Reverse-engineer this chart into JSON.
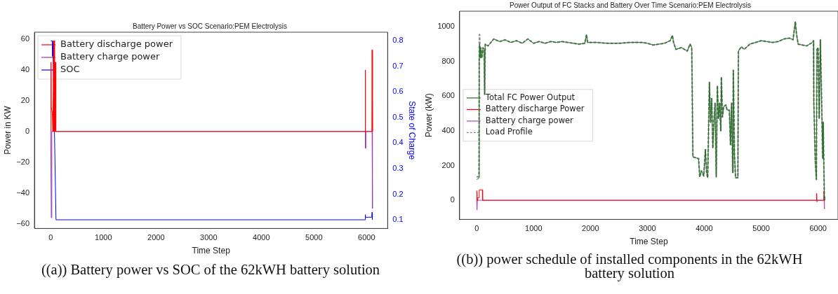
{
  "chart_data": [
    {
      "type": "line",
      "title": "Battery Power vs SOC Scenario:PEM Electrolysis",
      "xlabel": "Time Step",
      "ylabel": "Power in KW",
      "y2label": "State of Charge",
      "legend": "top left",
      "annotations": [
        "((a)) Battery power vs SOC of the 62kWH battery solution"
      ],
      "xlim": [
        -310,
        6400
      ],
      "ylim": [
        -63,
        64.5
      ],
      "y2lim": [
        0.066,
        0.834
      ],
      "xticks": [
        0,
        1000,
        2000,
        3000,
        4000,
        5000,
        6000
      ],
      "yticks": [
        {
          "value": -60,
          "label": "−60"
        },
        {
          "value": -40,
          "label": "−40"
        },
        {
          "value": -20,
          "label": "−20"
        },
        0,
        20,
        40,
        60
      ],
      "y2ticks": [
        0.1,
        0.2,
        0.3,
        0.4,
        0.5,
        0.6,
        0.7,
        0.8
      ],
      "series": [
        {
          "name": "Battery discharge power",
          "color": "#ff0000",
          "x": [
            0,
            5,
            10,
            30,
            40,
            55,
            60,
            65,
            70,
            75,
            80,
            85,
            90,
            95,
            100,
            5970,
            5975,
            5980,
            6100,
            6105,
            6110,
            6115
          ],
          "values": [
            0,
            45,
            16,
            12,
            0,
            59,
            0,
            45,
            0,
            59,
            0,
            45,
            0,
            45,
            0,
            0,
            40,
            0,
            0,
            53,
            13,
            0
          ]
        },
        {
          "name": "Battery charge power",
          "color": "#9b30b0",
          "x": [
            0,
            10,
            20,
            5975,
            5980,
            5985,
            6105,
            6110,
            6115
          ],
          "values": [
            0,
            -56,
            0,
            0,
            -11,
            0,
            0,
            -50,
            0
          ]
        },
        {
          "name": "SOC",
          "color": "#0000ff",
          "axis": "y2",
          "x": [
            0,
            30,
            35,
            40,
            45,
            100,
            5970,
            5975,
            5980,
            6100,
            6105,
            6110
          ],
          "values": [
            0.8,
            0.8,
            0.74,
            0.79,
            0.74,
            0.1,
            0.1,
            0.12,
            0.11,
            0.11,
            0.13,
            0.1
          ]
        }
      ]
    },
    {
      "type": "line",
      "title": "Power Output of FC Stacks and Battery Over Time Scenario:PEM Electrolysis",
      "xlabel": "Time Step",
      "ylabel": "Power (kW)",
      "legend": "center left",
      "annotations": [
        "((b)) power schedule of installed components in the 62kWH battery solution"
      ],
      "xlim": [
        -300,
        6350
      ],
      "ylim": [
        -110,
        1090
      ],
      "xticks": [
        0,
        1000,
        2000,
        3000,
        4000,
        5000,
        6000
      ],
      "yticks": [
        0,
        200,
        400,
        600,
        800,
        1000
      ],
      "series": [
        {
          "name": "Total FC Power Output",
          "color": "#1e6e1e",
          "x": [
            0,
            30,
            40,
            45,
            50,
            60,
            70,
            90,
            110,
            130,
            140,
            150,
            200,
            300,
            400,
            500,
            600,
            700,
            800,
            900,
            1000,
            1100,
            1200,
            1300,
            1400,
            1500,
            1600,
            1700,
            1800,
            1900,
            1930,
            1950,
            2100,
            2300,
            2500,
            2700,
            2900,
            3000,
            3100,
            3300,
            3400,
            3440,
            3460,
            3500,
            3600,
            3700,
            3750,
            3780,
            3800,
            3850,
            3900,
            3920,
            3950,
            3990,
            4020,
            4040,
            4060,
            4090,
            4110,
            4130,
            4150,
            4170,
            4190,
            4210,
            4230,
            4250,
            4270,
            4290,
            4300,
            4320,
            4340,
            4380,
            4400,
            4440,
            4460,
            4480,
            4500,
            4510,
            4530,
            4550,
            4590,
            4600,
            4650,
            4700,
            4800,
            4900,
            5000,
            5100,
            5200,
            5300,
            5400,
            5500,
            5560,
            5600,
            5620,
            5650,
            5800,
            5900,
            5920,
            5925,
            5950,
            5970,
            5980,
            6000,
            6020,
            6040,
            6060,
            6080,
            6090,
            6100,
            6110,
            6115
          ],
          "values": [
            120,
            125,
            130,
            800,
            900,
            820,
            880,
            820,
            880,
            870,
            610,
            900,
            890,
            930,
            915,
            925,
            910,
            920,
            905,
            930,
            905,
            915,
            905,
            915,
            910,
            915,
            910,
            905,
            900,
            905,
            955,
            910,
            910,
            905,
            905,
            910,
            910,
            905,
            895,
            905,
            920,
            950,
            910,
            870,
            880,
            860,
            900,
            880,
            250,
            245,
            240,
            135,
            170,
            140,
            295,
            160,
            130,
            680,
            450,
            590,
            300,
            460,
            560,
            135,
            660,
            470,
            560,
            400,
            710,
            480,
            540,
            550,
            520,
            520,
            320,
            560,
            160,
            750,
            270,
            130,
            130,
            860,
            885,
            870,
            900,
            910,
            920,
            915,
            910,
            915,
            930,
            935,
            925,
            1030,
            960,
            900,
            890,
            910,
            920,
            570,
            230,
            120,
            870,
            880,
            470,
            925,
            620,
            240,
            450,
            230,
            20,
            0
          ]
        },
        {
          "name": "Battery discharge Power",
          "color": "#ff0000",
          "x": [
            0,
            5,
            10,
            20,
            40,
            45,
            100,
            105,
            5970,
            5975,
            5980,
            6100,
            6105,
            6110
          ],
          "values": [
            0,
            55,
            0,
            15,
            15,
            60,
            60,
            0,
            0,
            40,
            0,
            0,
            55,
            0
          ]
        },
        {
          "name": "Battery charge power",
          "color": "#b040c0",
          "x": [
            0,
            5,
            10,
            5975,
            5980,
            5985,
            6105,
            6110,
            6115
          ],
          "values": [
            0,
            -55,
            0,
            0,
            -10,
            0,
            0,
            -50,
            0
          ]
        },
        {
          "name": "Load Profile",
          "color": "#888888",
          "line_style": "dashed",
          "x": [
            0,
            30,
            40,
            45,
            50,
            55,
            60,
            70,
            90,
            110,
            130,
            140,
            150,
            200,
            300,
            400,
            500,
            600,
            700,
            800,
            900,
            1000,
            1100,
            1200,
            1300,
            1400,
            1500,
            1600,
            1700,
            1800,
            1900,
            1930,
            1950,
            2100,
            2300,
            2500,
            2700,
            2900,
            3000,
            3100,
            3300,
            3400,
            3440,
            3460,
            3500,
            3600,
            3700,
            3750,
            3780,
            3800,
            3850,
            3900,
            3920,
            3950,
            3990,
            4020,
            4040,
            4060,
            4090,
            4110,
            4130,
            4150,
            4170,
            4190,
            4210,
            4230,
            4250,
            4270,
            4290,
            4300,
            4320,
            4340,
            4380,
            4400,
            4440,
            4460,
            4480,
            4500,
            4510,
            4530,
            4550,
            4590,
            4600,
            4650,
            4700,
            4800,
            4900,
            5000,
            5100,
            5200,
            5300,
            5400,
            5500,
            5560,
            5600,
            5620,
            5650,
            5800,
            5900,
            5920,
            5925,
            5950,
            5970,
            5980,
            6000,
            6020,
            6040,
            6060,
            6080,
            6090,
            6100,
            6110,
            6115
          ],
          "values": [
            135,
            135,
            140,
            800,
            955,
            900,
            820,
            880,
            820,
            880,
            870,
            610,
            900,
            890,
            930,
            915,
            925,
            910,
            920,
            905,
            930,
            905,
            915,
            905,
            915,
            910,
            915,
            910,
            905,
            900,
            905,
            955,
            910,
            910,
            905,
            905,
            910,
            910,
            905,
            895,
            905,
            920,
            950,
            910,
            870,
            880,
            860,
            900,
            880,
            250,
            245,
            240,
            135,
            170,
            140,
            295,
            160,
            130,
            680,
            450,
            590,
            300,
            460,
            560,
            135,
            660,
            470,
            560,
            400,
            710,
            480,
            540,
            550,
            520,
            520,
            320,
            560,
            160,
            750,
            270,
            130,
            130,
            860,
            885,
            870,
            900,
            910,
            920,
            915,
            910,
            915,
            930,
            935,
            925,
            1030,
            960,
            900,
            890,
            910,
            920,
            570,
            230,
            120,
            870,
            880,
            470,
            925,
            620,
            240,
            450,
            230,
            20,
            0
          ]
        }
      ]
    }
  ]
}
